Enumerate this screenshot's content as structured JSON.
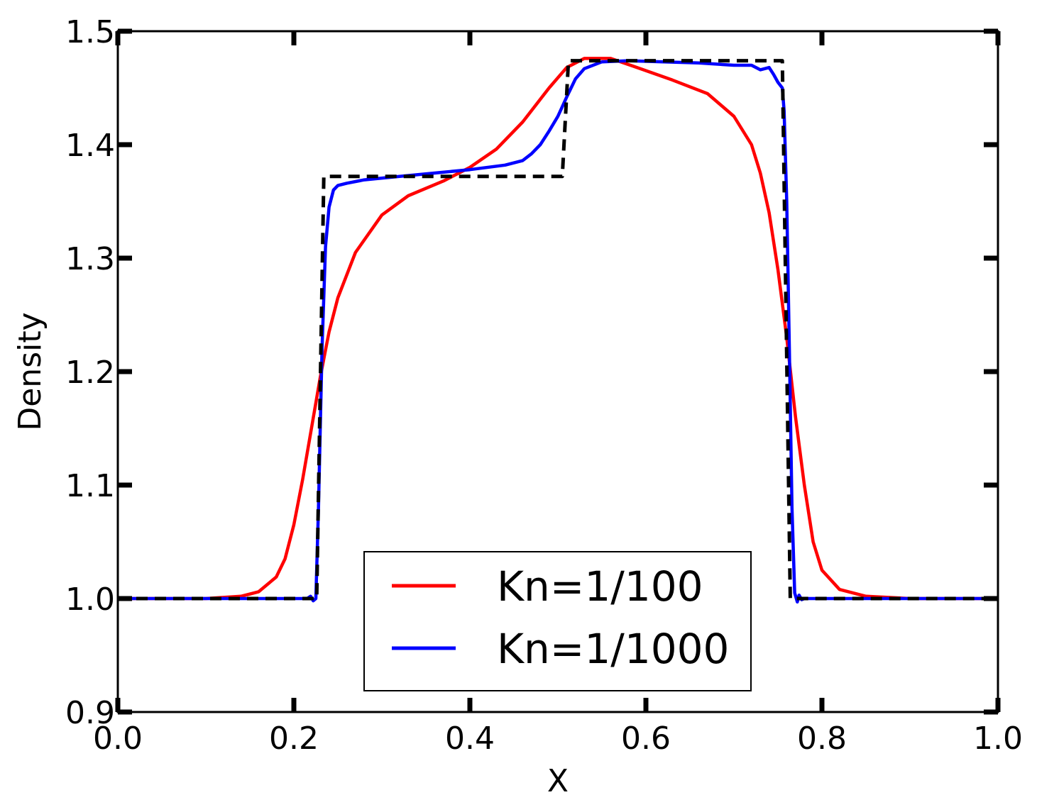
{
  "chart_data": {
    "type": "line",
    "xlabel": "X",
    "ylabel": "Density",
    "xlim": [
      0.0,
      1.0
    ],
    "ylim": [
      0.9,
      1.5
    ],
    "xticks": [
      "0.0",
      "0.2",
      "0.4",
      "0.6",
      "0.8",
      "1.0"
    ],
    "yticks": [
      "0.9",
      "1.0",
      "1.1",
      "1.2",
      "1.3",
      "1.4",
      "1.5"
    ],
    "grid": false,
    "legend_position": "bottom-center",
    "series": [
      {
        "name": "Kn=1/100",
        "color": "#ff0000",
        "style": "solid",
        "x": [
          0.0,
          0.1,
          0.14,
          0.16,
          0.18,
          0.19,
          0.2,
          0.21,
          0.22,
          0.23,
          0.24,
          0.25,
          0.27,
          0.3,
          0.33,
          0.37,
          0.4,
          0.43,
          0.46,
          0.49,
          0.51,
          0.53,
          0.56,
          0.59,
          0.63,
          0.67,
          0.7,
          0.72,
          0.73,
          0.74,
          0.75,
          0.76,
          0.77,
          0.78,
          0.79,
          0.8,
          0.82,
          0.85,
          0.9,
          1.0
        ],
        "y": [
          1.0,
          1.0,
          1.002,
          1.006,
          1.019,
          1.035,
          1.065,
          1.105,
          1.15,
          1.195,
          1.235,
          1.265,
          1.305,
          1.338,
          1.355,
          1.368,
          1.38,
          1.396,
          1.42,
          1.45,
          1.468,
          1.476,
          1.476,
          1.468,
          1.457,
          1.445,
          1.425,
          1.4,
          1.375,
          1.34,
          1.29,
          1.23,
          1.16,
          1.1,
          1.05,
          1.025,
          1.008,
          1.002,
          1.0,
          1.0
        ]
      },
      {
        "name": "Kn=1/1000",
        "color": "#0000ff",
        "style": "solid",
        "x": [
          0.0,
          0.215,
          0.219,
          0.222,
          0.225,
          0.228,
          0.232,
          0.236,
          0.24,
          0.245,
          0.25,
          0.26,
          0.28,
          0.32,
          0.36,
          0.4,
          0.44,
          0.46,
          0.47,
          0.48,
          0.49,
          0.5,
          0.51,
          0.52,
          0.53,
          0.55,
          0.58,
          0.62,
          0.66,
          0.7,
          0.72,
          0.73,
          0.74,
          0.745,
          0.75,
          0.755,
          0.757,
          0.76,
          0.763,
          0.766,
          0.769,
          0.772,
          0.774,
          0.777,
          0.78,
          1.0
        ],
        "y": [
          1.0,
          1.0,
          1.002,
          0.998,
          1.0,
          1.08,
          1.22,
          1.31,
          1.345,
          1.36,
          1.364,
          1.366,
          1.369,
          1.372,
          1.375,
          1.378,
          1.382,
          1.386,
          1.392,
          1.4,
          1.412,
          1.425,
          1.442,
          1.458,
          1.467,
          1.473,
          1.474,
          1.473,
          1.472,
          1.47,
          1.47,
          1.466,
          1.468,
          1.462,
          1.455,
          1.45,
          1.43,
          1.35,
          1.22,
          1.08,
          1.005,
          0.997,
          1.003,
          0.999,
          1.0,
          1.0
        ]
      },
      {
        "name": "",
        "color": "#000000",
        "style": "dashed",
        "x": [
          0.0,
          0.226,
          0.234,
          0.505,
          0.512,
          0.755,
          0.764,
          1.0
        ],
        "y": [
          1.0,
          1.0,
          1.372,
          1.372,
          1.474,
          1.474,
          1.0,
          1.0
        ]
      }
    ]
  }
}
